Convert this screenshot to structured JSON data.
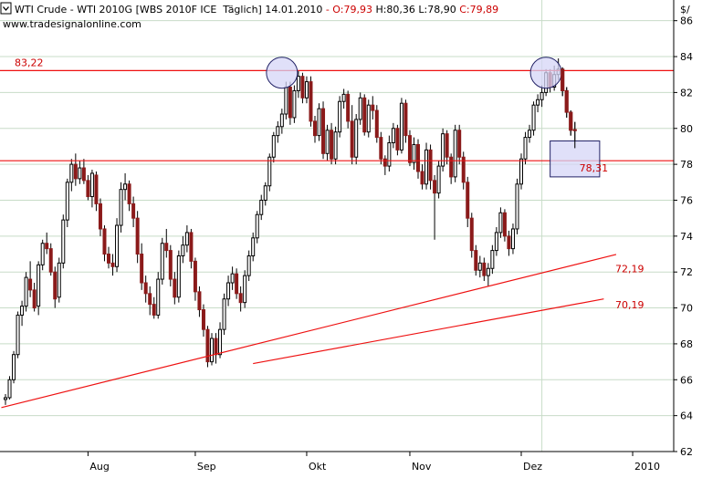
{
  "header": {
    "instrument": "WTI Crude - WTI 2010G [WBS 2010F ICE  Täglich] 14.01.2010",
    "ohlc": [
      {
        "text": " - O:79,93",
        "color": "#cc0000"
      },
      {
        "text": " H:80,36",
        "color": "#000000"
      },
      {
        "text": " L:78,90",
        "color": "#000000"
      },
      {
        "text": " C:79,89",
        "color": "#cc0000"
      }
    ],
    "website": "www.tradesignalonline.com",
    "unit": "$/"
  },
  "colors": {
    "up_candle": "#000000",
    "down_candle": "#8b1a1a",
    "annotation": "#ee1111",
    "label": "#cc0000",
    "grid": "#c8dcc8",
    "highlight_fill": "#d6d6f7",
    "highlight_stroke": "#222266"
  },
  "chart_data": {
    "type": "candlestick",
    "y_axis": {
      "min": 62,
      "max": 87,
      "ticks": [
        62,
        64,
        66,
        68,
        70,
        72,
        74,
        76,
        78,
        80,
        82,
        84,
        86
      ],
      "position": "right"
    },
    "x_axis": {
      "labels": [
        "Aug",
        "Sep",
        "Okt",
        "Nov",
        "Dez",
        "2010"
      ],
      "label_at_index": [
        20,
        46,
        73,
        98,
        125,
        152
      ]
    },
    "grid": true,
    "candles": [
      [
        64.9,
        65.2,
        64.6,
        65.0
      ],
      [
        65.0,
        66.2,
        64.9,
        66.0
      ],
      [
        66.0,
        67.6,
        65.8,
        67.4
      ],
      [
        67.4,
        69.8,
        67.2,
        69.6
      ],
      [
        69.6,
        70.4,
        69.0,
        70.1
      ],
      [
        70.1,
        72.0,
        69.8,
        71.7
      ],
      [
        71.6,
        72.6,
        70.6,
        71.0
      ],
      [
        71.0,
        71.4,
        69.8,
        70.0
      ],
      [
        70.1,
        72.6,
        69.6,
        72.4
      ],
      [
        72.4,
        73.8,
        72.1,
        73.6
      ],
      [
        73.6,
        74.2,
        73.0,
        73.3
      ],
      [
        73.3,
        73.6,
        71.8,
        72.0
      ],
      [
        72.0,
        72.3,
        70.0,
        70.5
      ],
      [
        70.6,
        72.8,
        70.3,
        72.5
      ],
      [
        72.5,
        75.2,
        72.2,
        74.9
      ],
      [
        74.9,
        77.2,
        74.5,
        77.0
      ],
      [
        77.0,
        78.3,
        76.5,
        78.0
      ],
      [
        78.0,
        78.6,
        76.8,
        77.2
      ],
      [
        77.2,
        78.2,
        76.9,
        77.8
      ],
      [
        77.8,
        78.3,
        76.9,
        77.1
      ],
      [
        77.1,
        77.4,
        76.0,
        76.2
      ],
      [
        76.2,
        77.7,
        75.6,
        77.5
      ],
      [
        77.4,
        77.6,
        75.4,
        75.8
      ],
      [
        75.8,
        76.1,
        74.0,
        74.4
      ],
      [
        74.4,
        74.6,
        72.6,
        73.0
      ],
      [
        73.0,
        73.4,
        72.2,
        72.5
      ],
      [
        72.5,
        73.0,
        71.8,
        72.3
      ],
      [
        72.3,
        75.0,
        72.0,
        74.6
      ],
      [
        74.6,
        77.0,
        74.2,
        76.6
      ],
      [
        76.6,
        77.5,
        76.0,
        76.9
      ],
      [
        76.9,
        77.1,
        75.4,
        75.8
      ],
      [
        75.8,
        76.2,
        74.5,
        75.0
      ],
      [
        75.0,
        75.4,
        72.5,
        73.0
      ],
      [
        73.0,
        73.6,
        71.0,
        71.4
      ],
      [
        71.4,
        71.8,
        70.3,
        70.8
      ],
      [
        70.8,
        71.2,
        69.6,
        70.2
      ],
      [
        70.2,
        70.6,
        69.4,
        69.6
      ],
      [
        69.6,
        72.0,
        69.4,
        71.6
      ],
      [
        71.6,
        73.9,
        71.3,
        73.6
      ],
      [
        73.6,
        74.4,
        72.8,
        73.2
      ],
      [
        73.2,
        73.5,
        71.2,
        71.6
      ],
      [
        71.6,
        72.0,
        70.2,
        70.6
      ],
      [
        70.6,
        73.2,
        70.3,
        72.9
      ],
      [
        72.9,
        74.0,
        72.5,
        73.5
      ],
      [
        73.5,
        74.6,
        73.1,
        74.2
      ],
      [
        74.2,
        74.4,
        72.2,
        72.6
      ],
      [
        72.6,
        72.8,
        70.4,
        70.9
      ],
      [
        70.9,
        71.2,
        69.5,
        69.9
      ],
      [
        69.9,
        70.2,
        68.4,
        68.8
      ],
      [
        68.8,
        69.0,
        66.7,
        67.0
      ],
      [
        67.0,
        68.6,
        66.8,
        68.3
      ],
      [
        68.3,
        68.6,
        66.9,
        67.4
      ],
      [
        67.4,
        69.2,
        67.2,
        68.8
      ],
      [
        68.8,
        70.8,
        68.5,
        70.5
      ],
      [
        70.5,
        71.8,
        70.1,
        71.4
      ],
      [
        71.4,
        72.3,
        71.0,
        71.9
      ],
      [
        71.9,
        72.2,
        70.5,
        70.8
      ],
      [
        70.8,
        71.2,
        69.8,
        70.3
      ],
      [
        70.3,
        72.1,
        70.0,
        71.8
      ],
      [
        71.8,
        73.2,
        71.5,
        72.9
      ],
      [
        72.9,
        74.2,
        72.6,
        73.9
      ],
      [
        73.9,
        75.4,
        73.6,
        75.2
      ],
      [
        75.2,
        76.3,
        74.9,
        76.0
      ],
      [
        76.0,
        77.0,
        75.7,
        76.8
      ],
      [
        76.8,
        78.6,
        76.5,
        78.4
      ],
      [
        78.4,
        79.8,
        78.1,
        79.6
      ],
      [
        79.6,
        80.4,
        79.2,
        80.1
      ],
      [
        80.1,
        81.1,
        79.7,
        80.8
      ],
      [
        80.8,
        82.6,
        80.5,
        82.3
      ],
      [
        82.3,
        82.6,
        80.2,
        80.6
      ],
      [
        80.6,
        82.4,
        80.3,
        82.1
      ],
      [
        82.1,
        83.2,
        81.7,
        82.9
      ],
      [
        82.9,
        83.1,
        81.4,
        81.7
      ],
      [
        81.7,
        82.9,
        81.4,
        82.6
      ],
      [
        82.6,
        82.9,
        80.1,
        80.4
      ],
      [
        80.4,
        80.7,
        79.2,
        79.6
      ],
      [
        79.6,
        81.4,
        79.3,
        81.1
      ],
      [
        81.1,
        81.5,
        78.3,
        78.6
      ],
      [
        78.6,
        80.2,
        78.2,
        79.9
      ],
      [
        79.9,
        80.3,
        78.0,
        78.3
      ],
      [
        78.3,
        80.1,
        78.0,
        79.8
      ],
      [
        79.8,
        81.8,
        79.5,
        81.5
      ],
      [
        81.5,
        82.2,
        81.1,
        81.9
      ],
      [
        81.9,
        82.1,
        80.0,
        80.4
      ],
      [
        80.4,
        81.3,
        78.0,
        78.4
      ],
      [
        78.4,
        80.8,
        78.0,
        80.5
      ],
      [
        80.5,
        82.0,
        80.2,
        81.7
      ],
      [
        81.7,
        81.9,
        79.6,
        79.8
      ],
      [
        79.8,
        81.6,
        79.5,
        81.3
      ],
      [
        81.3,
        81.8,
        80.5,
        81.0
      ],
      [
        81.0,
        81.3,
        79.2,
        79.5
      ],
      [
        79.5,
        79.8,
        78.0,
        78.3
      ],
      [
        78.3,
        78.5,
        77.4,
        77.9
      ],
      [
        77.9,
        79.6,
        77.6,
        79.2
      ],
      [
        79.2,
        80.3,
        78.9,
        80.0
      ],
      [
        80.0,
        80.2,
        78.5,
        78.8
      ],
      [
        78.8,
        81.7,
        78.6,
        81.4
      ],
      [
        81.4,
        81.6,
        79.2,
        79.6
      ],
      [
        79.6,
        79.9,
        77.9,
        78.1
      ],
      [
        78.1,
        79.5,
        77.7,
        79.1
      ],
      [
        79.1,
        79.4,
        77.2,
        77.6
      ],
      [
        77.6,
        78.0,
        76.6,
        76.9
      ],
      [
        76.9,
        79.2,
        76.6,
        78.8
      ],
      [
        78.8,
        79.1,
        76.6,
        77.1
      ],
      [
        77.1,
        77.4,
        73.8,
        76.4
      ],
      [
        76.4,
        78.2,
        76.1,
        77.9
      ],
      [
        77.9,
        80.0,
        77.6,
        79.7
      ],
      [
        79.7,
        79.9,
        78.0,
        78.4
      ],
      [
        78.4,
        78.6,
        76.9,
        77.3
      ],
      [
        77.3,
        80.2,
        77.0,
        79.9
      ],
      [
        79.9,
        80.2,
        78.0,
        78.4
      ],
      [
        78.4,
        78.7,
        76.6,
        77.0
      ],
      [
        77.0,
        77.3,
        74.5,
        75.0
      ],
      [
        75.0,
        75.3,
        72.8,
        73.2
      ],
      [
        73.2,
        73.5,
        71.8,
        72.1
      ],
      [
        72.1,
        72.9,
        71.7,
        72.5
      ],
      [
        72.5,
        72.8,
        71.5,
        71.8
      ],
      [
        71.8,
        72.5,
        71.2,
        72.2
      ],
      [
        72.2,
        73.5,
        71.9,
        73.2
      ],
      [
        73.2,
        74.5,
        72.9,
        74.2
      ],
      [
        74.2,
        75.6,
        73.9,
        75.3
      ],
      [
        75.3,
        75.5,
        73.7,
        74.0
      ],
      [
        74.0,
        74.3,
        72.9,
        73.3
      ],
      [
        73.3,
        74.7,
        73.0,
        74.4
      ],
      [
        74.4,
        77.2,
        74.1,
        76.9
      ],
      [
        76.9,
        78.6,
        76.6,
        78.3
      ],
      [
        78.3,
        79.8,
        78.0,
        79.5
      ],
      [
        79.5,
        80.2,
        79.2,
        79.9
      ],
      [
        79.9,
        81.5,
        79.6,
        81.3
      ],
      [
        81.3,
        81.9,
        80.9,
        81.6
      ],
      [
        81.6,
        82.4,
        81.2,
        82.0
      ],
      [
        82.0,
        83.3,
        81.8,
        83.1
      ],
      [
        83.1,
        83.3,
        82.0,
        82.3
      ],
      [
        82.3,
        83.5,
        82.1,
        83.0
      ],
      [
        83.0,
        83.9,
        82.7,
        83.3
      ],
      [
        83.3,
        83.4,
        81.8,
        82.1
      ],
      [
        82.1,
        82.3,
        80.6,
        80.9
      ],
      [
        80.9,
        81.0,
        79.6,
        79.9
      ],
      [
        79.93,
        80.36,
        78.9,
        79.89
      ]
    ],
    "annotations": {
      "hlines": [
        {
          "y": 83.22,
          "label": "83,22"
        },
        {
          "y": 78.2,
          "label": ""
        }
      ],
      "trendlines": [
        {
          "label": "72,19",
          "from": [
            -1,
            64.45
          ],
          "to": [
            148,
            72.98
          ],
          "label_at_value": 72.19
        },
        {
          "label": "70,19",
          "from": [
            60,
            66.9
          ],
          "to": [
            145,
            70.5
          ],
          "label_at_value": 70.19
        }
      ],
      "circles": [
        {
          "x_index": 67,
          "y": 83.1
        },
        {
          "x_index": 131,
          "y": 83.1
        }
      ],
      "box": {
        "x_from": 132,
        "x_to": 144,
        "y_from": 77.3,
        "y_to": 79.3,
        "label": "78,31"
      },
      "vline_index": 130
    }
  }
}
